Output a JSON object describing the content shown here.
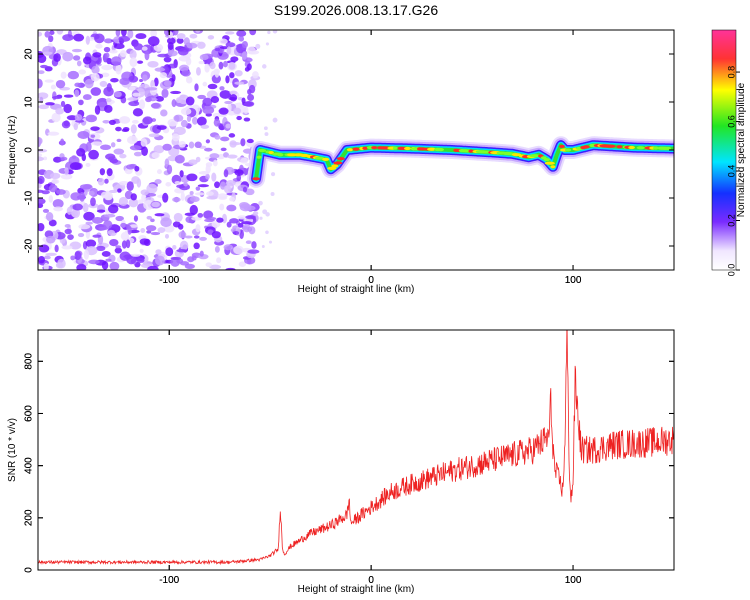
{
  "title": "S199.2026.008.13.17.G26",
  "chart_data": [
    {
      "type": "heatmap",
      "name": "spectrogram",
      "xlabel": "Height of straight line (km)",
      "ylabel": "Frequency (Hz)",
      "xlim": [
        -165,
        150
      ],
      "ylim": [
        -25,
        25
      ],
      "x_ticks": [
        -100,
        0,
        100
      ],
      "x_tick_labels": [
        "-100",
        "0",
        "100"
      ],
      "y_ticks": [
        -20,
        -10,
        0,
        10,
        20
      ],
      "y_tick_labels": [
        "-20",
        "-10",
        "0",
        "10",
        "20"
      ],
      "noise_region_x": [
        -165,
        -57
      ],
      "signal_track": {
        "x": [
          -57,
          -55,
          -45,
          -35,
          -28,
          -22,
          -20,
          -17,
          -12,
          0,
          20,
          40,
          60,
          70,
          78,
          83,
          87,
          90,
          92,
          94,
          96,
          100,
          110,
          130,
          150
        ],
        "freq": [
          -6,
          0,
          -1,
          -1,
          -1.5,
          -2,
          -4,
          -3,
          0,
          0.5,
          0.3,
          0,
          -0.5,
          -0.8,
          -1.5,
          -1,
          -2,
          -3.5,
          -1,
          1,
          0,
          0,
          1,
          0.5,
          0.3
        ]
      },
      "colorbar": {
        "label": "Normalized spectral amplitude",
        "range": [
          0,
          0.97
        ],
        "ticks": [
          0.0,
          0.2,
          0.4,
          0.6,
          0.8
        ],
        "tick_labels": [
          "0.0",
          "0.2",
          "0.4",
          "0.6",
          "0.8"
        ],
        "colors": [
          "#ffffff",
          "#7a2cff",
          "#1430ff",
          "#00e5ff",
          "#22e622",
          "#ffff00",
          "#ff3333",
          "#ff3399"
        ]
      }
    },
    {
      "type": "line",
      "name": "snr",
      "xlabel": "Height of straight line (km)",
      "ylabel": "SNR (10 * v/v)",
      "xlim": [
        -165,
        150
      ],
      "ylim": [
        0,
        920
      ],
      "x_ticks": [
        -100,
        0,
        100
      ],
      "x_tick_labels": [
        "-100",
        "0",
        "100"
      ],
      "y_ticks": [
        0,
        200,
        400,
        600,
        800
      ],
      "y_tick_labels": [
        "0",
        "200",
        "400",
        "600",
        "800"
      ],
      "color": "#ee2222",
      "series": [
        {
          "name": "SNR",
          "x": [
            -165,
            -120,
            -90,
            -70,
            -55,
            -50,
            -46,
            -45,
            -44,
            -43,
            -40,
            -30,
            -20,
            -12,
            -11,
            -10,
            0,
            10,
            20,
            40,
            60,
            70,
            80,
            88,
            89,
            90,
            91,
            93,
            95,
            96,
            97,
            98,
            99,
            100,
            101,
            104,
            110,
            120,
            140,
            150
          ],
          "y": [
            30,
            30,
            30,
            30,
            40,
            55,
            80,
            250,
            90,
            60,
            90,
            140,
            170,
            210,
            270,
            180,
            240,
            300,
            330,
            380,
            420,
            440,
            460,
            510,
            640,
            480,
            380,
            350,
            300,
            520,
            910,
            430,
            270,
            340,
            720,
            460,
            460,
            480,
            490,
            500
          ]
        }
      ]
    }
  ]
}
